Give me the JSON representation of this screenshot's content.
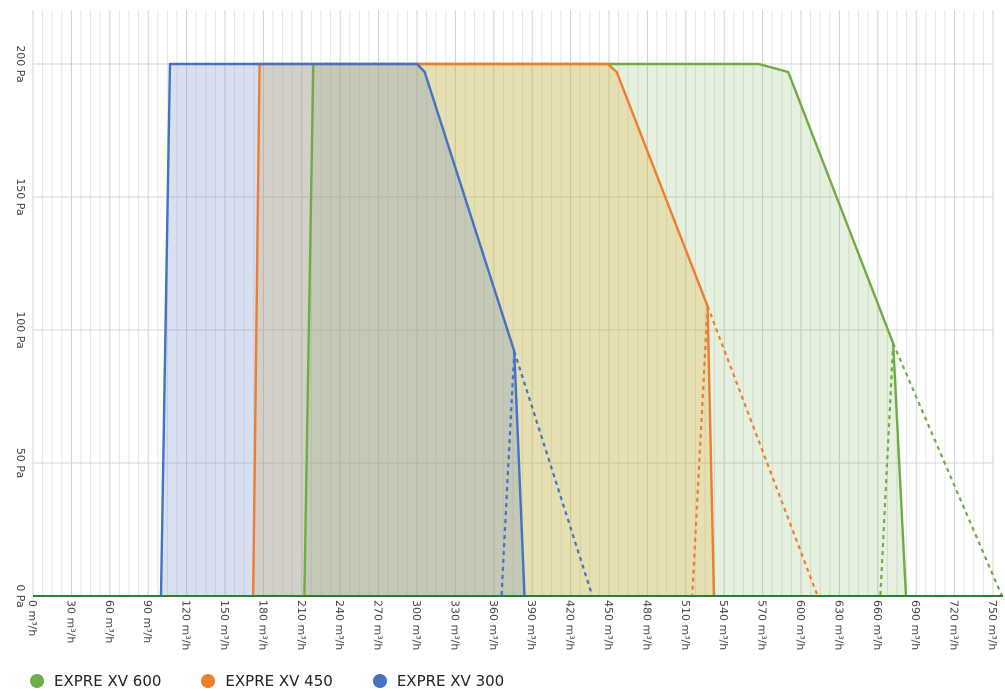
{
  "chart_data": {
    "type": "area",
    "x_unit": "m³/h",
    "y_unit": "Pa",
    "xlim": [
      0,
      750
    ],
    "ylim": [
      0,
      200
    ],
    "x_ticks": [
      0,
      30,
      60,
      90,
      120,
      150,
      180,
      210,
      240,
      270,
      300,
      330,
      360,
      390,
      420,
      450,
      480,
      510,
      540,
      570,
      600,
      630,
      660,
      690,
      720,
      750
    ],
    "x_tick_labels": [
      "0 m³/h",
      "30 m³/h",
      "60 m³/h",
      "90 m³/h",
      "120 m³/h",
      "150 m³/h",
      "180 m³/h",
      "210 m³/h",
      "240 m³/h",
      "270 m³/h",
      "300 m³/h",
      "330 m³/h",
      "360 m³/h",
      "390 m³/h",
      "420 m³/h",
      "450 m³/h",
      "480 m³/h",
      "510 m³/h",
      "540 m³/h",
      "570 m³/h",
      "600 m³/h",
      "630 m³/h",
      "660 m³/h",
      "690 m³/h",
      "720 m³/h",
      "750 m³/h"
    ],
    "y_ticks": [
      0,
      50,
      100,
      150,
      200
    ],
    "y_tick_labels": [
      "0 Pa",
      "50 Pa",
      "100 Pa",
      "150 Pa",
      "200 Pa"
    ],
    "grid": true,
    "legend_position": "bottom-left",
    "series": [
      {
        "name": "EXPRE XV 600",
        "color": "#6fac46",
        "fill": "rgba(112,173,71,0.18)",
        "solid": [
          [
            212,
            0
          ],
          [
            219,
            200
          ],
          [
            567,
            200
          ],
          [
            590,
            197
          ],
          [
            672,
            95
          ],
          [
            682,
            0
          ]
        ],
        "dashed": [
          [
            [
              672,
              95
            ],
            [
              757,
              0
            ]
          ],
          [
            [
              672,
              95
            ],
            [
              662,
              0
            ]
          ]
        ]
      },
      {
        "name": "EXPRE XV 450",
        "color": "#ed7d31",
        "fill": "rgba(230,180,60,0.28)",
        "solid": [
          [
            172,
            0
          ],
          [
            177,
            200
          ],
          [
            449,
            200
          ],
          [
            456,
            197
          ],
          [
            527,
            109
          ],
          [
            532,
            0
          ]
        ],
        "dashed": [
          [
            [
              527,
              109
            ],
            [
              613,
              0
            ]
          ],
          [
            [
              527,
              109
            ],
            [
              515,
              0
            ]
          ]
        ]
      },
      {
        "name": "EXPRE XV 300",
        "color": "#4472c4",
        "fill": "rgba(110,140,200,0.28)",
        "solid": [
          [
            100,
            0
          ],
          [
            107,
            200
          ],
          [
            300,
            200
          ],
          [
            306,
            197
          ],
          [
            376,
            92
          ],
          [
            384,
            0
          ]
        ],
        "dashed": [
          [
            [
              376,
              92
            ],
            [
              437,
              0
            ]
          ],
          [
            [
              376,
              92
            ],
            [
              366,
              0
            ]
          ]
        ]
      }
    ]
  },
  "legend": {
    "items": [
      {
        "label": "EXPRE XV 600",
        "color": "#70ad47"
      },
      {
        "label": "EXPRE XV 450",
        "color": "#ed7d31"
      },
      {
        "label": "EXPRE XV 300",
        "color": "#4472c4"
      }
    ]
  }
}
